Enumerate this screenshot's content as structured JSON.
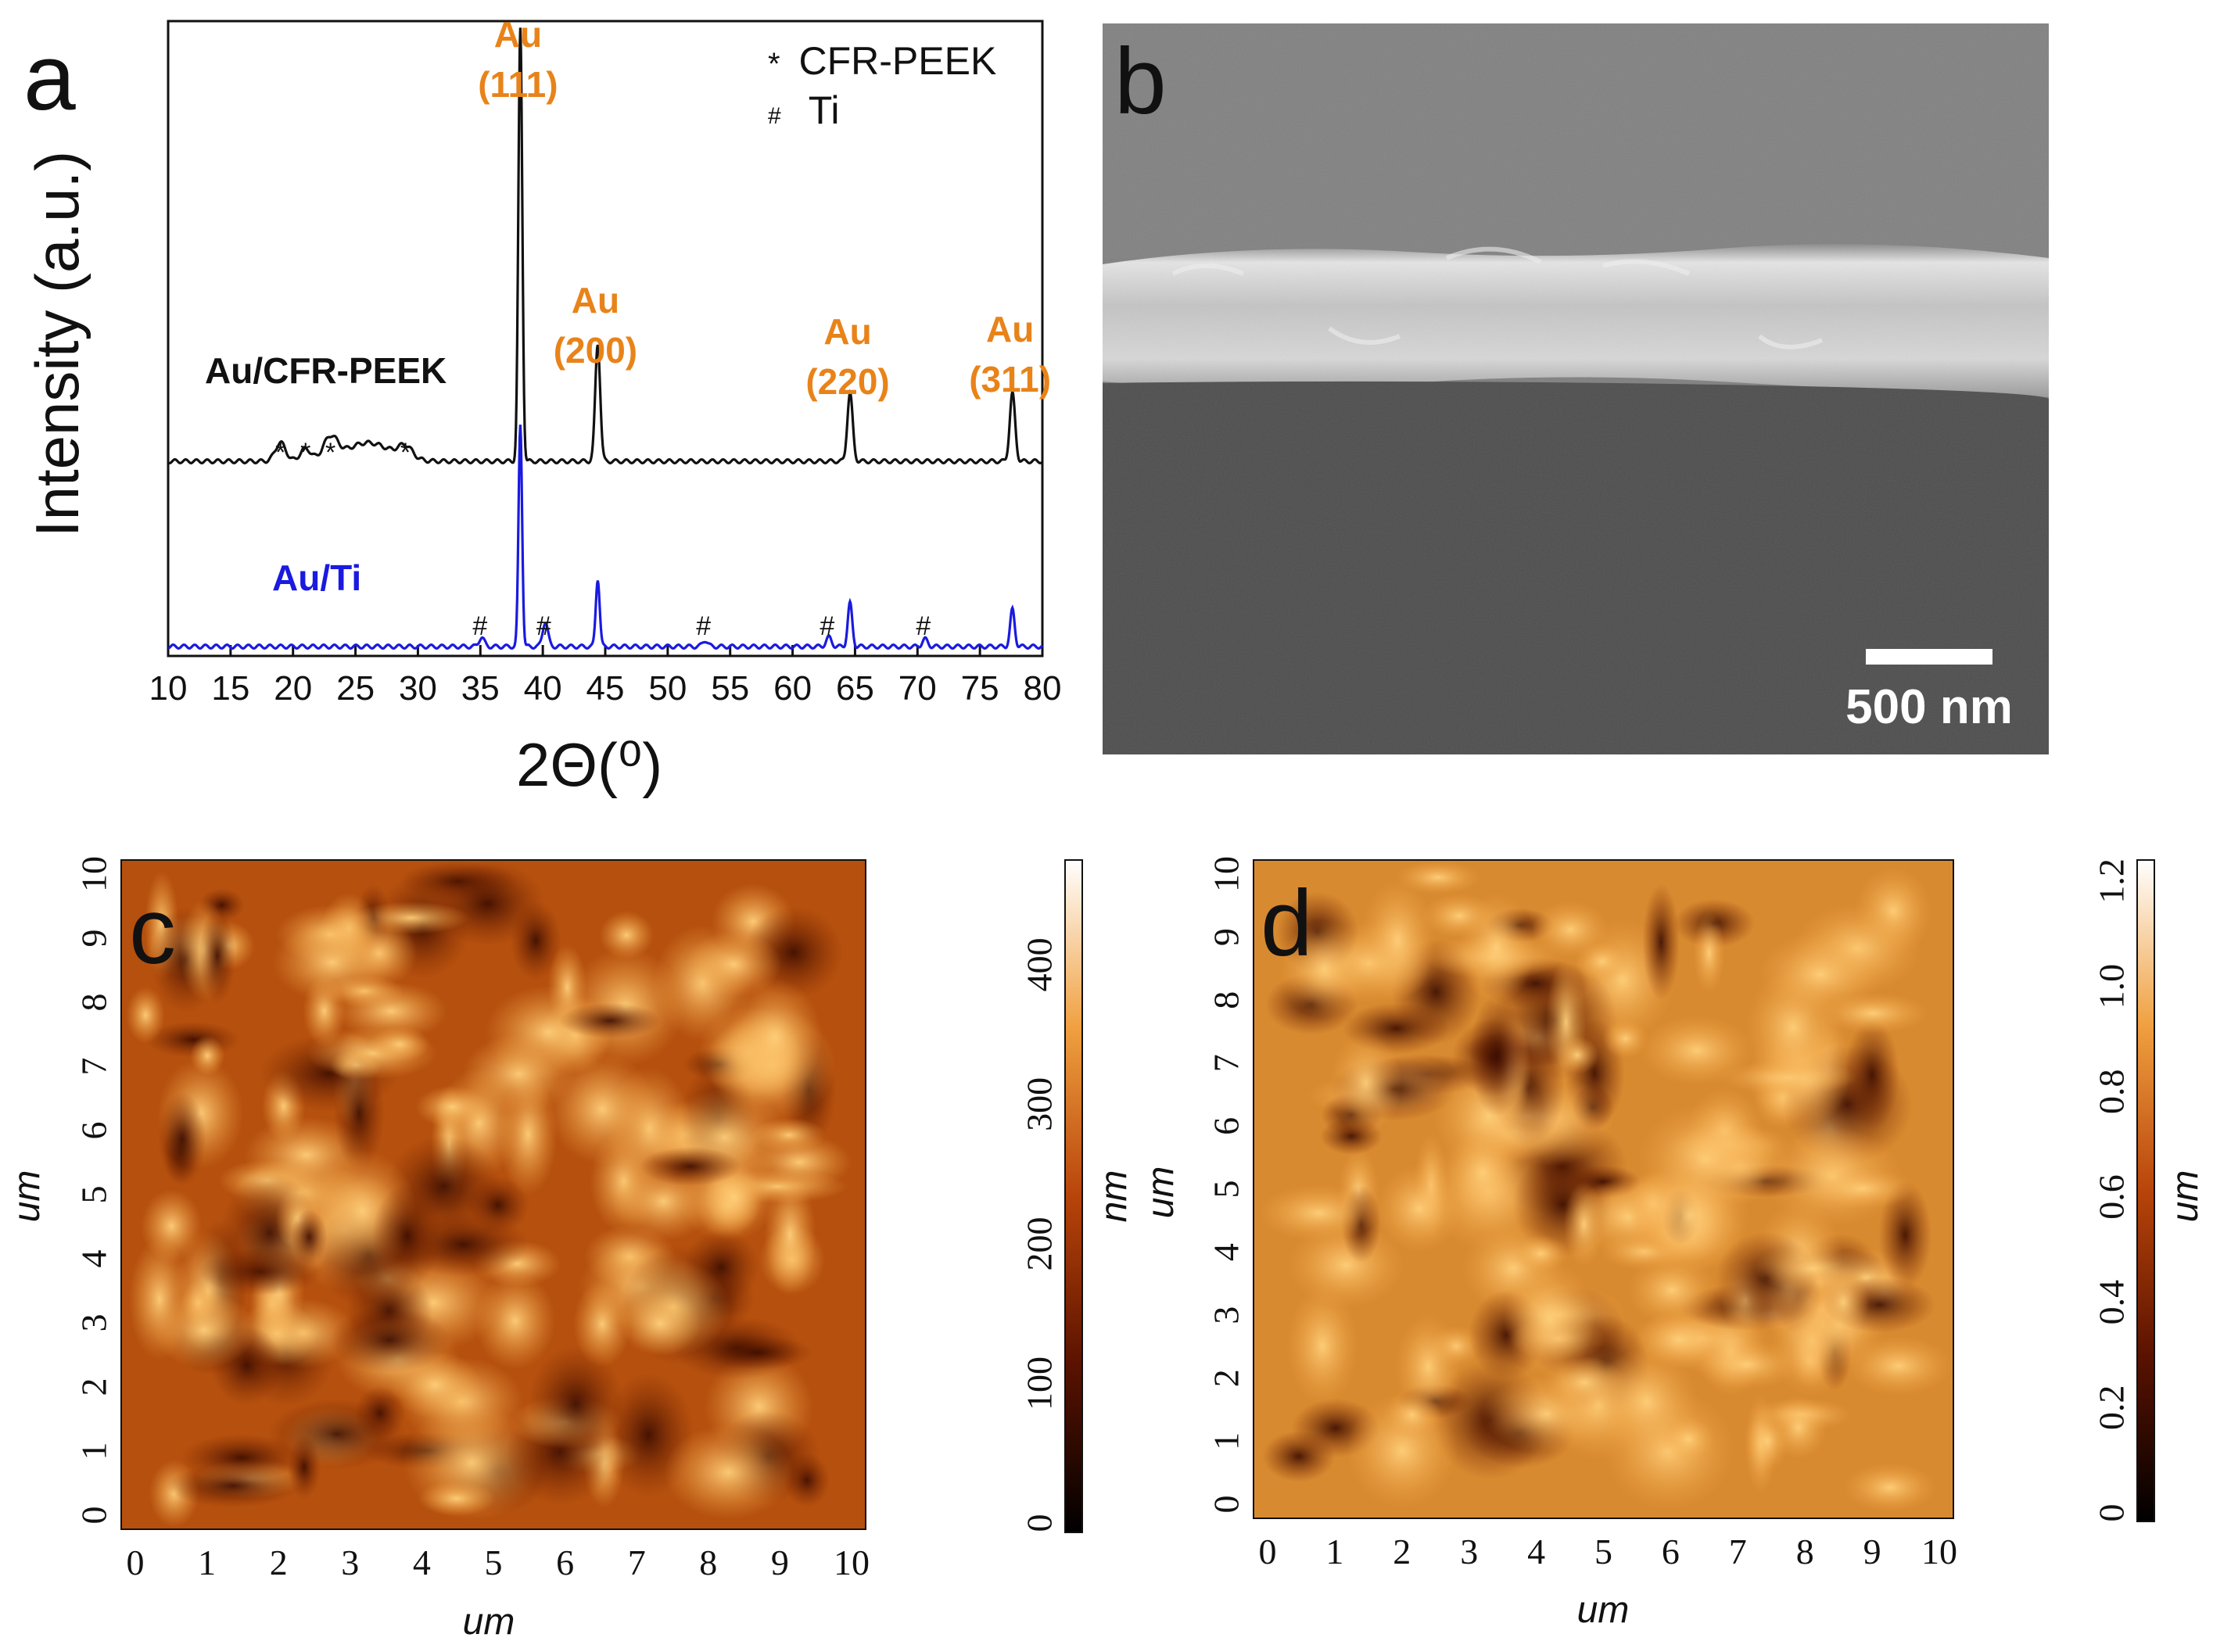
{
  "panels": {
    "a": {
      "letter": "a",
      "chart_data": {
        "type": "line",
        "title": "",
        "xlabel": "2Θ(⁰)",
        "ylabel": "Intensity (a.u.)",
        "xlim": [
          10,
          80
        ],
        "x_ticks": [
          10,
          15,
          20,
          25,
          30,
          35,
          40,
          45,
          50,
          55,
          60,
          65,
          70,
          75,
          80
        ],
        "series": [
          {
            "name": "Au/CFR-PEEK",
            "color": "#111111",
            "baseline": 0.3,
            "peaks": [
              {
                "x": 19.0,
                "h": 0.03,
                "w": 0.6
              },
              {
                "x": 21.0,
                "h": 0.02,
                "w": 0.6
              },
              {
                "x": 23.0,
                "h": 0.035,
                "w": 0.8
              },
              {
                "x": 26.0,
                "h": 0.03,
                "w": 2.5
              },
              {
                "x": 29.0,
                "h": 0.02,
                "w": 0.8
              },
              {
                "x": 38.2,
                "h": 0.7,
                "w": 0.22
              },
              {
                "x": 44.4,
                "h": 0.19,
                "w": 0.28
              },
              {
                "x": 64.6,
                "h": 0.11,
                "w": 0.3
              },
              {
                "x": 77.6,
                "h": 0.11,
                "w": 0.3
              }
            ]
          },
          {
            "name": "Au/Ti",
            "color": "#1a1ae0",
            "baseline": 0.0,
            "peaks": [
              {
                "x": 35.1,
                "h": 0.015,
                "w": 0.3
              },
              {
                "x": 38.2,
                "h": 0.36,
                "w": 0.2
              },
              {
                "x": 40.2,
                "h": 0.04,
                "w": 0.3
              },
              {
                "x": 44.4,
                "h": 0.11,
                "w": 0.22
              },
              {
                "x": 53.0,
                "h": 0.01,
                "w": 0.3
              },
              {
                "x": 62.9,
                "h": 0.015,
                "w": 0.3
              },
              {
                "x": 64.6,
                "h": 0.07,
                "w": 0.25
              },
              {
                "x": 70.6,
                "h": 0.012,
                "w": 0.3
              },
              {
                "x": 77.6,
                "h": 0.06,
                "w": 0.25
              }
            ]
          }
        ],
        "peak_labels": [
          {
            "element": "Au",
            "hkl": "(111)",
            "x": 38.2
          },
          {
            "element": "Au",
            "hkl": "(200)",
            "x": 44.4
          },
          {
            "element": "Au",
            "hkl": "(220)",
            "x": 64.6
          },
          {
            "element": "Au",
            "hkl": "(311)",
            "x": 77.6
          }
        ],
        "legend": [
          {
            "symbol": "*",
            "label": "CFR-PEEK"
          },
          {
            "symbol": "#",
            "label": "Ti"
          }
        ],
        "legend_position": "top-right",
        "series_labels": [
          "Au/CFR-PEEK",
          "Au/Ti"
        ],
        "cfr_markers": [
          19.0,
          21.0,
          23.0,
          29.0
        ],
        "ti_markers": [
          35.1,
          40.2,
          53.0,
          62.9,
          70.6
        ]
      }
    },
    "b": {
      "letter": "b",
      "scale_bar_label": "500 nm"
    },
    "c": {
      "letter": "c",
      "x_label": "um",
      "y_label": "um",
      "x_ticks": [
        "0",
        "1",
        "2",
        "3",
        "4",
        "5",
        "6",
        "7",
        "8",
        "9",
        "10"
      ],
      "y_ticks": [
        "0",
        "1",
        "2",
        "3",
        "4",
        "5",
        "6",
        "7",
        "8",
        "9",
        "10"
      ],
      "colorbar_unit": "nm",
      "colorbar_ticks": [
        "0",
        "100",
        "200",
        "300",
        "400"
      ]
    },
    "d": {
      "letter": "d",
      "x_label": "um",
      "y_label": "um",
      "x_ticks": [
        "0",
        "1",
        "2",
        "3",
        "4",
        "5",
        "6",
        "7",
        "8",
        "9",
        "10"
      ],
      "y_ticks": [
        "0",
        "1",
        "2",
        "3",
        "4",
        "5",
        "6",
        "7",
        "8",
        "9",
        "10"
      ],
      "colorbar_unit": "um",
      "colorbar_ticks": [
        "0",
        "0.2",
        "0.4",
        "0.6",
        "0.8",
        "1.0",
        "1.2"
      ]
    }
  }
}
